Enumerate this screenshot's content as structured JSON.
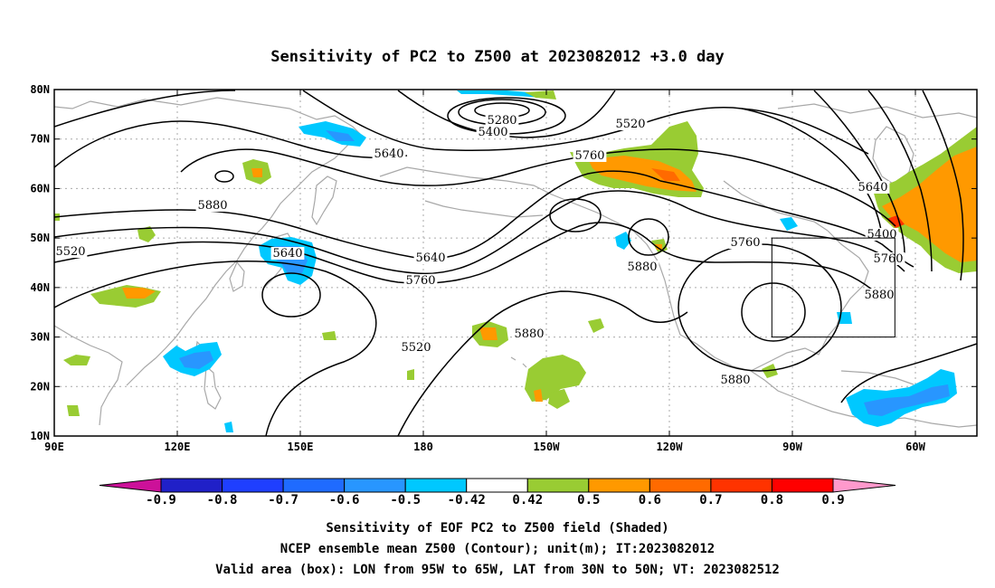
{
  "title": "Sensitivity of PC2 to Z500 at 2023082012 +3.0 day",
  "lat_labels": [
    "80N",
    "70N",
    "60N",
    "50N",
    "40N",
    "30N",
    "20N",
    "10N"
  ],
  "lon_labels": [
    "90E",
    "120E",
    "150E",
    "180",
    "150W",
    "120W",
    "90W",
    "60W"
  ],
  "contour_labels": [
    "5280",
    "5400",
    "5520",
    "5640",
    "5760",
    "5880",
    "5520",
    "5640",
    "5640",
    "5760",
    "5880",
    "5880",
    "5520",
    "5400",
    "5640",
    "5760",
    "5880",
    "5760",
    "5880"
  ],
  "colorbar": {
    "labels": [
      "-0.9",
      "-0.8",
      "-0.7",
      "-0.6",
      "-0.5",
      "-0.42",
      "0.42",
      "0.5",
      "0.6",
      "0.7",
      "0.8",
      "0.9"
    ],
    "colors": [
      "#2020c8",
      "#1f3fff",
      "#1f6bff",
      "#2896ff",
      "#00c8ff",
      "#ffffff",
      "#99cc33",
      "#ff9900",
      "#ff6a00",
      "#ff3300",
      "#ff0000"
    ],
    "left_arrow_color": "#cc1199",
    "right_arrow_color": "#ff99cc"
  },
  "caption": [
    "Sensitivity of EOF PC2 to Z500 field (Shaded)",
    "NCEP ensemble mean Z500 (Contour); unit(m); IT:2023082012",
    "Valid area (box): LON from 95W to 65W, LAT from 30N to 50N; VT: 2023082512"
  ],
  "valid_box": {
    "lon": [
      -95,
      -65
    ],
    "lat": [
      30,
      50
    ]
  },
  "map_extent": {
    "lon": [
      90,
      315
    ],
    "lat": [
      10,
      80
    ]
  }
}
